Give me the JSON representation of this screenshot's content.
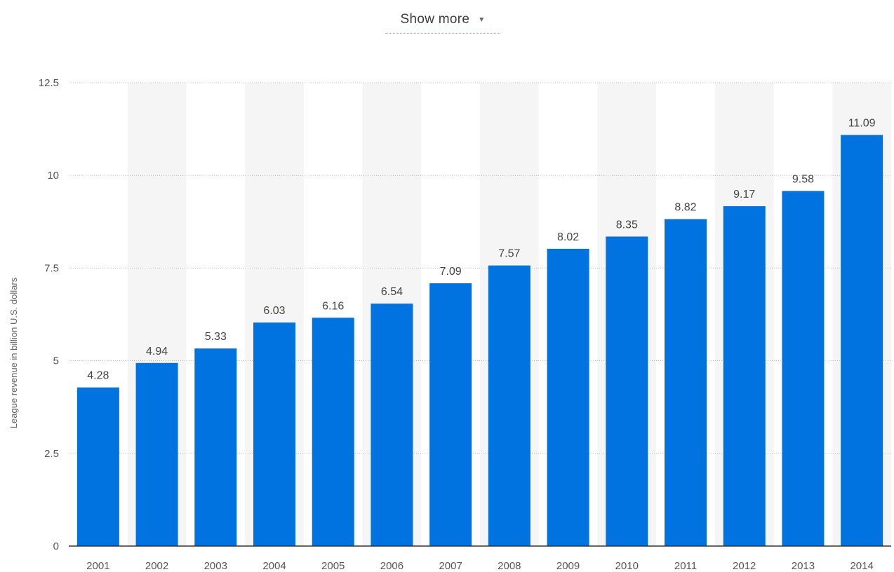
{
  "header": {
    "show_more_label": "Show more",
    "show_more_icon": "caret-down-icon"
  },
  "chart_data": {
    "type": "bar",
    "title": "",
    "xlabel": "",
    "ylabel": "League revenue in billion U.S. dollars",
    "categories": [
      "2001",
      "2002",
      "2003",
      "2004",
      "2005",
      "2006",
      "2007",
      "2008",
      "2009",
      "2010",
      "2011",
      "2012",
      "2013",
      "2014"
    ],
    "values": [
      4.28,
      4.94,
      5.33,
      6.03,
      6.16,
      6.54,
      7.09,
      7.57,
      8.02,
      8.35,
      8.82,
      9.17,
      9.58,
      11.09
    ],
    "data_labels": [
      "4.28",
      "4.94",
      "5.33",
      "6.03",
      "6.16",
      "6.54",
      "7.09",
      "7.57",
      "8.02",
      "8.35",
      "8.82",
      "9.17",
      "9.58",
      "11.09"
    ],
    "ylim": [
      0,
      12.5
    ],
    "y_ticks": [
      0,
      2.5,
      5,
      7.5,
      10,
      12.5
    ],
    "y_tick_labels": [
      "0",
      "2.5",
      "5",
      "7.5",
      "10",
      "12.5"
    ],
    "grid": true,
    "bar_color": "#0073e0",
    "alt_band_color": "#f5f5f5"
  }
}
